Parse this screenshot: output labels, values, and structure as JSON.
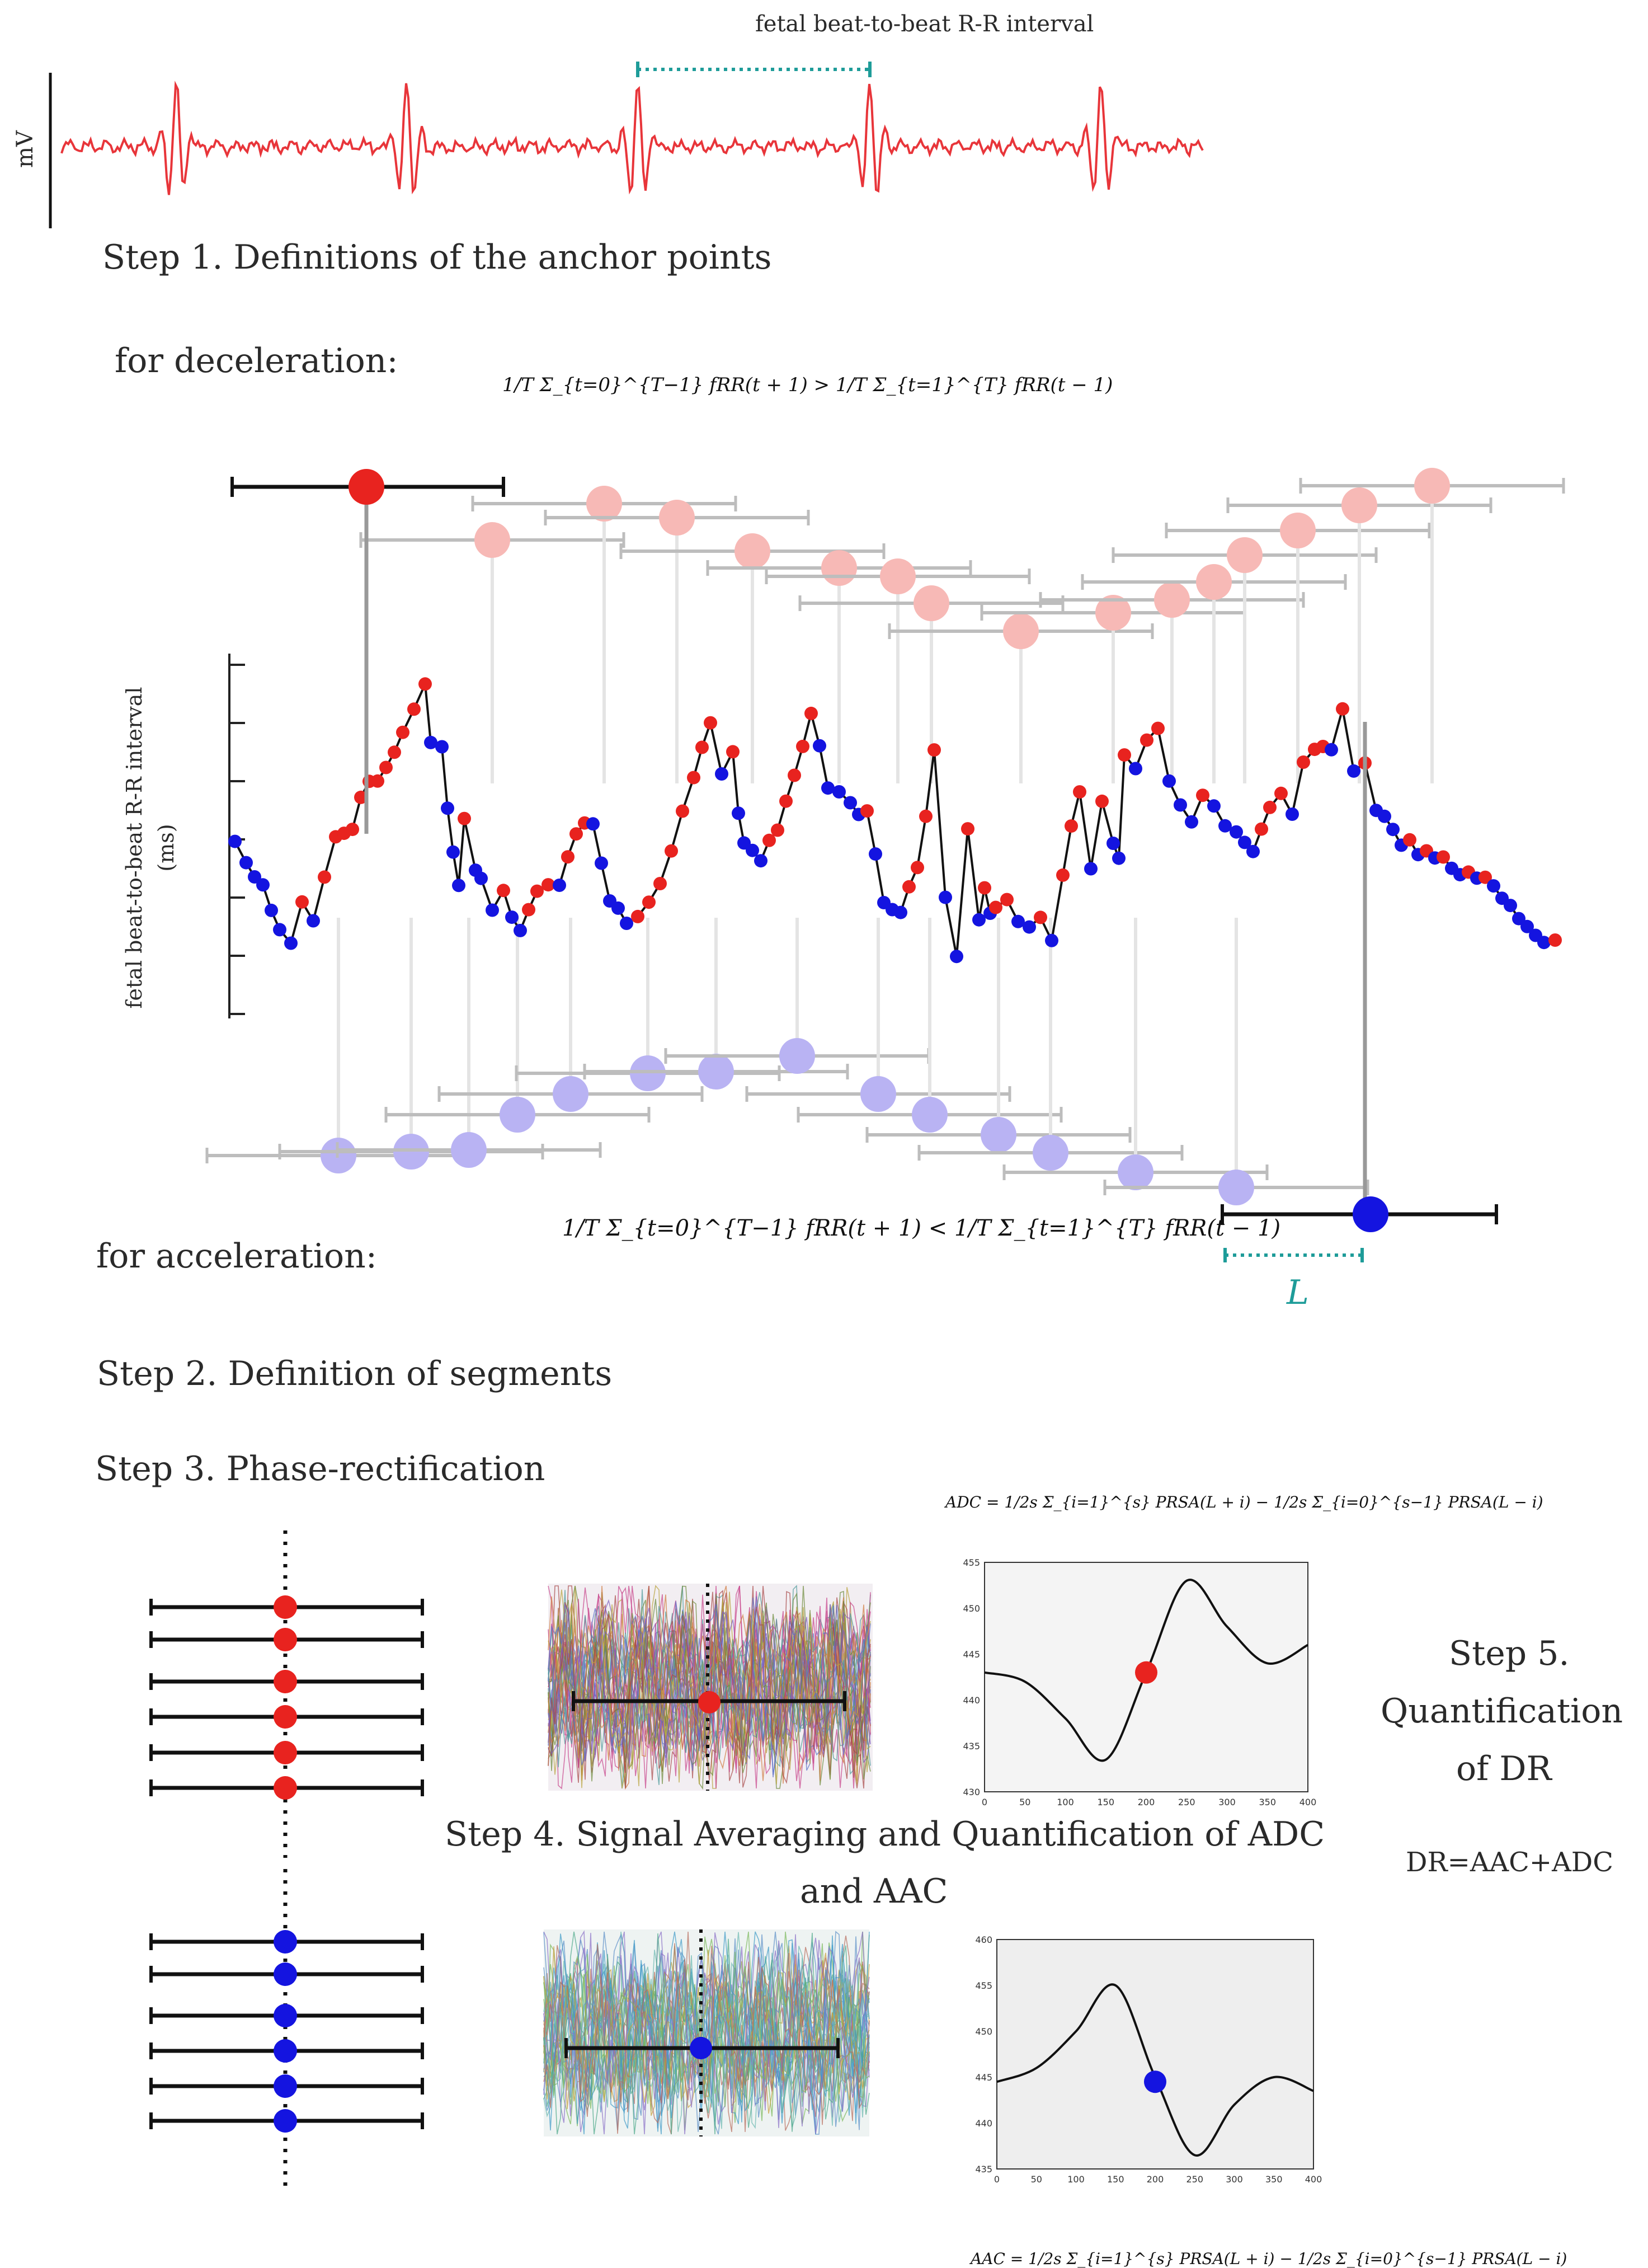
{
  "ecg": {
    "ylabel": "mV",
    "interval_label": "fetal beat-to-beat R-R interval"
  },
  "steps": {
    "step1": "Step 1. Definitions of the anchor points",
    "step2": "Step 2. Definition of segments",
    "step3": "Step 3. Phase-rectification",
    "step4_line1": "Step 4. Signal Averaging and Quantification of ADC",
    "step4_line2": "and AAC",
    "step5_line1": "Step 5.",
    "step5_line2": "Quantification",
    "step5_line3": "of DR"
  },
  "deceleration": {
    "label": "for deceleration:",
    "formula": "1/T Σ_{t=0}^{T−1} fRR(t + 1) > 1/T Σ_{t=1}^{T} fRR(t − 1)"
  },
  "acceleration": {
    "label": "for acceleration:",
    "formula": "1/T Σ_{t=0}^{T−1} fRR(t + 1) < 1/T Σ_{t=1}^{T} fRR(t − 1)"
  },
  "rr_chart": {
    "ylabel_line1": "fetal beat-to-beat R-R interval",
    "ylabel_line2": "(ms)",
    "window_label": "L"
  },
  "formulas": {
    "adc": "ADC = 1/2s Σ_{i=1}^{s} PRSA(L + i) − 1/2s Σ_{i=0}^{s−1} PRSA(L − i)",
    "aac": "AAC = 1/2s Σ_{i=1}^{s} PRSA(L + i) − 1/2s Σ_{i=0}^{s−1} PRSA(L − i)",
    "dr": "DR=AAC+ADC"
  },
  "chart_data": [
    {
      "type": "line",
      "series": [
        {
          "name": "",
          "x": [
            0,
            50,
            100,
            150,
            200,
            250,
            300,
            350,
            400
          ],
          "values": [
            443,
            442,
            438,
            433.5,
            443,
            453,
            448,
            444,
            446
          ]
        }
      ],
      "x_ticks": [
        "0",
        "50",
        "100",
        "150",
        "200",
        "250",
        "300",
        "350",
        "400"
      ],
      "y_ticks": [
        "455",
        "450",
        "445",
        "440",
        "435",
        "430"
      ],
      "xlim": [
        0,
        400
      ],
      "ylim": [
        430,
        455
      ],
      "marker": {
        "x": 200,
        "y": 443,
        "color": "#e8231f"
      }
    },
    {
      "type": "line",
      "series": [
        {
          "name": "",
          "x": [
            0,
            50,
            100,
            150,
            200,
            250,
            300,
            350,
            400
          ],
          "values": [
            444.5,
            446,
            450,
            455,
            445,
            436.5,
            442,
            445,
            443.5
          ]
        }
      ],
      "x_ticks": [
        "0",
        "50",
        "100",
        "150",
        "200",
        "250",
        "300",
        "350",
        "400"
      ],
      "y_ticks": [
        "460",
        "455",
        "450",
        "445",
        "440",
        "435"
      ],
      "xlim": [
        0,
        400
      ],
      "ylim": [
        435,
        460
      ],
      "marker": {
        "x": 200,
        "y": 444.5,
        "color": "#1414e0"
      }
    }
  ],
  "colors": {
    "ecg": "#e8353a",
    "decel": "#e8231f",
    "accel": "#1414e0",
    "teal": "#1e9c99",
    "decel_faint": "#f7b9b6",
    "accel_faint": "#b9b3f3"
  }
}
